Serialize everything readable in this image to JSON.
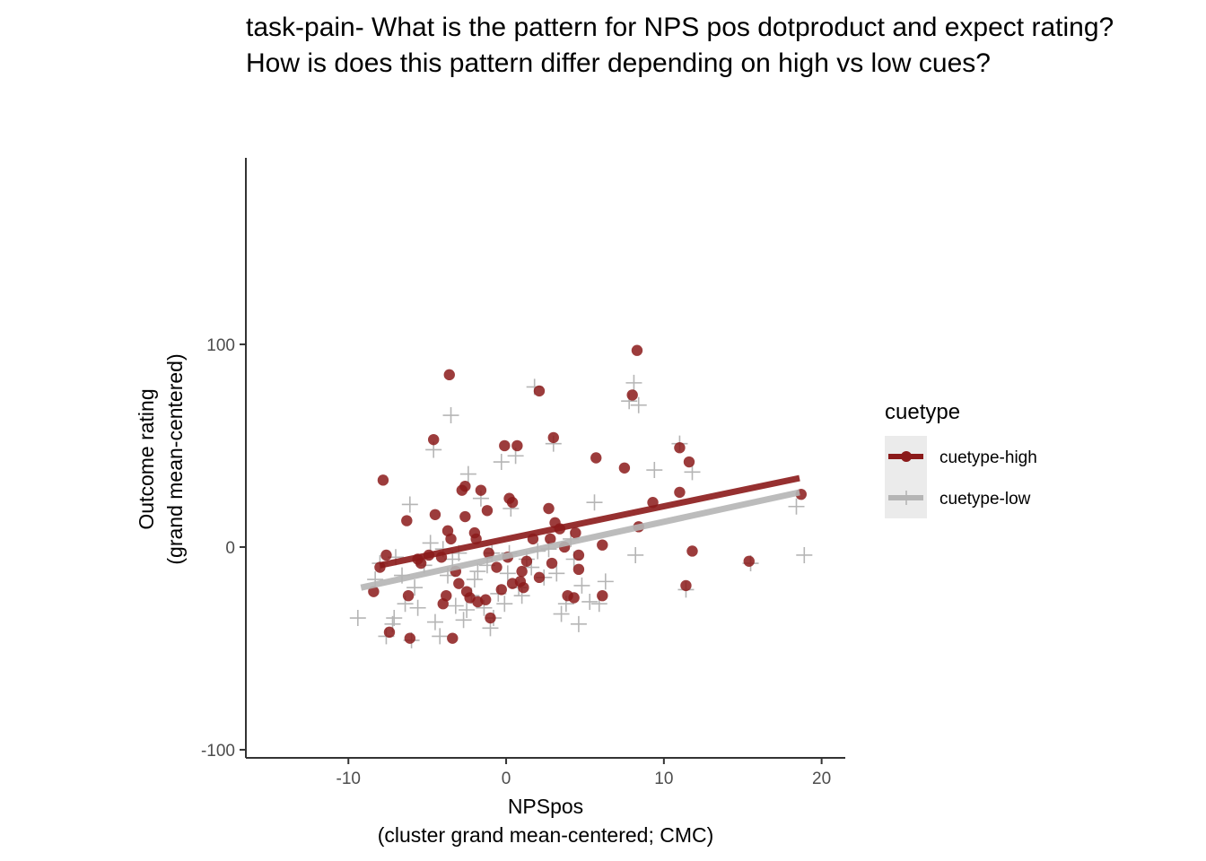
{
  "chart_data": {
    "type": "scatter",
    "title": [
      "task-pain- What is the pattern for NPS pos dotproduct and expect rating?",
      "How is does this pattern differ depending on high vs low cues?"
    ],
    "xlabel": [
      "NPSpos",
      "(cluster grand mean-centered; CMC)"
    ],
    "ylabel": [
      "Outcome rating",
      "(grand mean-centered)"
    ],
    "xlim": [
      -16.5,
      21.5
    ],
    "ylim": [
      -104,
      192
    ],
    "xticks": [
      -10,
      0,
      10,
      20
    ],
    "xtick_labels": [
      "-10",
      "0",
      "10",
      "20"
    ],
    "yticks": [
      -100,
      0,
      100
    ],
    "ytick_labels": [
      "-100",
      "0",
      "100"
    ],
    "grid": false,
    "legend": {
      "title": "cuetype",
      "placement": "right",
      "entries": [
        "cuetype-high",
        "cuetype-low"
      ]
    },
    "series": [
      {
        "name": "cuetype-high",
        "marker": "circle",
        "color": "#8B1A1A",
        "fit_line": {
          "x": [
            -8.0,
            18.6
          ],
          "y": [
            -9.0,
            34.0
          ]
        },
        "points": [
          [
            -8.0,
            -10
          ],
          [
            -7.6,
            -4
          ],
          [
            -7.8,
            33
          ],
          [
            -8.4,
            -22
          ],
          [
            -7.4,
            -42
          ],
          [
            -6.2,
            -24
          ],
          [
            -6.1,
            -45
          ],
          [
            -6.3,
            13
          ],
          [
            -5.6,
            -6
          ],
          [
            -5.4,
            -8
          ],
          [
            -4.9,
            -4
          ],
          [
            -4.6,
            53
          ],
          [
            -4.5,
            16
          ],
          [
            -4.1,
            -5
          ],
          [
            -4.0,
            -28
          ],
          [
            -3.8,
            -24
          ],
          [
            -3.7,
            8
          ],
          [
            -3.6,
            85
          ],
          [
            -3.5,
            4
          ],
          [
            -3.4,
            -45
          ],
          [
            -3.2,
            -12
          ],
          [
            -3.0,
            -18
          ],
          [
            -2.8,
            28
          ],
          [
            -2.6,
            30
          ],
          [
            -2.6,
            15
          ],
          [
            -2.5,
            -22
          ],
          [
            -2.3,
            -25
          ],
          [
            -2.0,
            7
          ],
          [
            -1.9,
            4
          ],
          [
            -1.8,
            -27
          ],
          [
            -1.6,
            28
          ],
          [
            -1.3,
            -26
          ],
          [
            -1.2,
            18
          ],
          [
            -1.1,
            -3
          ],
          [
            -1.0,
            -35
          ],
          [
            -0.6,
            -10
          ],
          [
            -0.3,
            -21
          ],
          [
            -0.1,
            50
          ],
          [
            0.1,
            -5
          ],
          [
            0.2,
            24
          ],
          [
            0.4,
            22
          ],
          [
            0.4,
            -18
          ],
          [
            0.7,
            50
          ],
          [
            0.9,
            -17
          ],
          [
            1.0,
            -12
          ],
          [
            1.1,
            -20
          ],
          [
            1.3,
            -7
          ],
          [
            1.7,
            4
          ],
          [
            2.1,
            77
          ],
          [
            2.1,
            -15
          ],
          [
            2.7,
            19
          ],
          [
            2.8,
            4
          ],
          [
            2.9,
            -8
          ],
          [
            3.0,
            54
          ],
          [
            3.1,
            12
          ],
          [
            3.4,
            9
          ],
          [
            3.7,
            0
          ],
          [
            3.9,
            -24
          ],
          [
            4.3,
            -25
          ],
          [
            4.4,
            7
          ],
          [
            4.6,
            -11
          ],
          [
            4.6,
            -4
          ],
          [
            5.7,
            44
          ],
          [
            6.1,
            1
          ],
          [
            6.1,
            -24
          ],
          [
            7.5,
            39
          ],
          [
            8.0,
            75
          ],
          [
            8.3,
            97
          ],
          [
            8.4,
            10
          ],
          [
            9.3,
            22
          ],
          [
            11.0,
            49
          ],
          [
            11.0,
            27
          ],
          [
            11.4,
            -19
          ],
          [
            11.6,
            42
          ],
          [
            11.8,
            -2
          ],
          [
            15.4,
            -7
          ],
          [
            18.7,
            26
          ]
        ]
      },
      {
        "name": "cuetype-low",
        "marker": "cross",
        "color": "#B5B5B5",
        "fit_line": {
          "x": [
            -9.2,
            18.6
          ],
          "y": [
            -20.0,
            27.0
          ]
        },
        "points": [
          [
            -9.4,
            -35
          ],
          [
            -8.3,
            -16
          ],
          [
            -8.0,
            -8
          ],
          [
            -7.6,
            -44
          ],
          [
            -7.1,
            -35
          ],
          [
            -7.2,
            -38
          ],
          [
            -7.0,
            -5
          ],
          [
            -6.6,
            -14
          ],
          [
            -6.4,
            -28
          ],
          [
            -6.1,
            21
          ],
          [
            -6.0,
            -46
          ],
          [
            -5.8,
            -20
          ],
          [
            -5.6,
            -30
          ],
          [
            -5.2,
            -9
          ],
          [
            -4.8,
            2
          ],
          [
            -4.5,
            -37
          ],
          [
            -4.6,
            48
          ],
          [
            -4.2,
            -44
          ],
          [
            -4.0,
            -1
          ],
          [
            -3.7,
            -14
          ],
          [
            -3.5,
            65
          ],
          [
            -3.4,
            -6
          ],
          [
            -3.2,
            -29
          ],
          [
            -3.0,
            -3
          ],
          [
            -2.7,
            -36
          ],
          [
            -2.5,
            -31
          ],
          [
            -2.4,
            36
          ],
          [
            -2.2,
            -24
          ],
          [
            -2.0,
            -16
          ],
          [
            -1.8,
            -12
          ],
          [
            -1.6,
            24
          ],
          [
            -1.4,
            -30
          ],
          [
            -1.2,
            -9
          ],
          [
            -1.0,
            -40
          ],
          [
            -0.9,
            -3
          ],
          [
            -0.8,
            -35
          ],
          [
            -0.5,
            -23
          ],
          [
            -0.3,
            42
          ],
          [
            -0.1,
            -28
          ],
          [
            0.1,
            -13
          ],
          [
            0.2,
            -3
          ],
          [
            0.3,
            19
          ],
          [
            0.6,
            45
          ],
          [
            0.8,
            -20
          ],
          [
            1.0,
            -24
          ],
          [
            1.3,
            -6
          ],
          [
            1.6,
            -10
          ],
          [
            1.8,
            79
          ],
          [
            2.0,
            -2
          ],
          [
            2.4,
            -15
          ],
          [
            2.7,
            -1
          ],
          [
            3.0,
            51
          ],
          [
            3.2,
            -13
          ],
          [
            3.5,
            -33
          ],
          [
            3.8,
            -28
          ],
          [
            4.1,
            4
          ],
          [
            4.3,
            -6
          ],
          [
            4.6,
            -38
          ],
          [
            4.8,
            -19
          ],
          [
            5.3,
            -27
          ],
          [
            5.6,
            22
          ],
          [
            5.9,
            -28
          ],
          [
            6.3,
            -17
          ],
          [
            7.8,
            72
          ],
          [
            8.1,
            81
          ],
          [
            8.2,
            -4
          ],
          [
            8.4,
            70
          ],
          [
            9.4,
            38
          ],
          [
            11.0,
            51
          ],
          [
            11.4,
            -21
          ],
          [
            11.8,
            37
          ],
          [
            15.5,
            -8
          ],
          [
            18.4,
            20
          ],
          [
            18.9,
            -4
          ]
        ]
      }
    ]
  }
}
